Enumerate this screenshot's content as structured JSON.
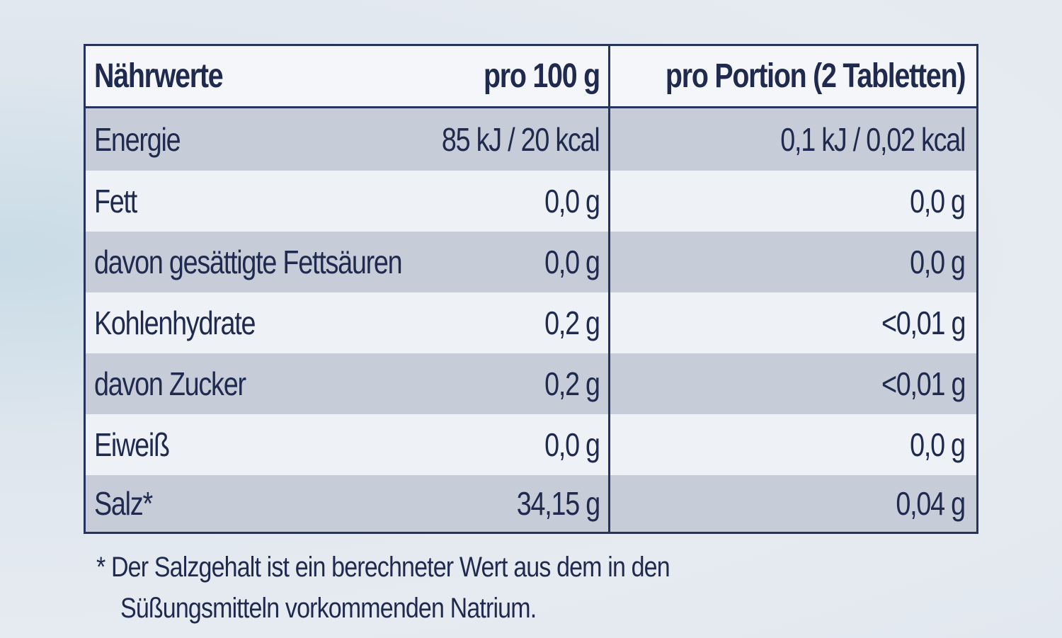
{
  "table": {
    "header": {
      "name": "Nährwerte",
      "per100": "pro 100 g",
      "perPortion": "pro Portion (2 Tabletten)"
    },
    "rows": [
      {
        "name": "Energie",
        "per100": "85 kJ / 20 kcal",
        "perPortion": "0,1 kJ / 0,02 kcal"
      },
      {
        "name": "Fett",
        "per100": "0,0 g",
        "perPortion": "0,0 g"
      },
      {
        "name": "davon gesättigte Fettsäuren",
        "per100": "0,0 g",
        "perPortion": "0,0 g"
      },
      {
        "name": "Kohlenhydrate",
        "per100": "0,2 g",
        "perPortion": "<0,01 g"
      },
      {
        "name": "davon Zucker",
        "per100": "0,2 g",
        "perPortion": "<0,01 g"
      },
      {
        "name": "Eiweiß",
        "per100": "0,0 g",
        "perPortion": "0,0 g"
      },
      {
        "name": "Salz*",
        "per100": "34,15 g",
        "perPortion": "0,04 g"
      }
    ]
  },
  "footnote": {
    "line1": "* Der Salzgehalt ist ein berechneter Wert aus dem in den",
    "line2": "Süßungsmitteln vorkommenden Natrium."
  },
  "colors": {
    "text": "#1f2a4e",
    "border": "#26335e",
    "rowShaded": "#c6ccd8",
    "rowPlain": "#eef1f5"
  }
}
